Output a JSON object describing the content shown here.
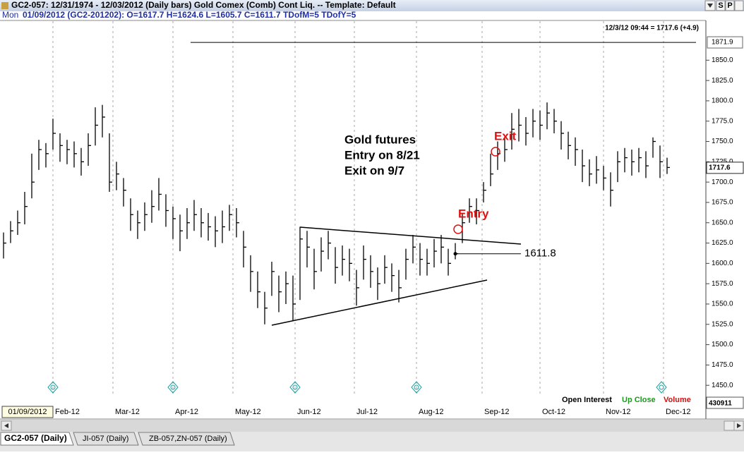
{
  "window": {
    "title": "GC2-057:  12/31/1974 - 12/03/2012  (Daily bars)   Gold Comex (Comb) Cont Liq.  --  Template: Default",
    "buttons": [
      "S",
      "P"
    ]
  },
  "info_line": {
    "day": "Mon",
    "text": "01/09/2012 (GC2-201202):  O=1617.7  H=1624.6  L=1605.7  C=1611.7  TDofM=5  TDofY=5"
  },
  "chart_data": {
    "type": "ohlc",
    "high": [
      1638,
      1652,
      1665,
      1688,
      1735,
      1752,
      1748,
      1778,
      1760,
      1752,
      1750,
      1742,
      1760,
      1792,
      1795,
      1760,
      1725,
      1705,
      1680,
      1665,
      1675,
      1690,
      1705,
      1685,
      1670,
      1660,
      1668,
      1678,
      1668,
      1662,
      1658,
      1665,
      1672,
      1668,
      1640,
      1610,
      1590,
      1565,
      1602,
      1585,
      1590,
      1585,
      1645,
      1640,
      1618,
      1632,
      1640,
      1620,
      1622,
      1618,
      1592,
      1622,
      1610,
      1595,
      1610,
      1600,
      1592,
      1618,
      1635,
      1625,
      1618,
      1630,
      1635,
      1618,
      1625,
      1662,
      1680,
      1680,
      1700,
      1735,
      1750,
      1755,
      1785,
      1790,
      1780,
      1790,
      1788,
      1798,
      1790,
      1775,
      1762,
      1755,
      1740,
      1728,
      1732,
      1720,
      1712,
      1738,
      1742,
      1740,
      1742,
      1738,
      1755,
      1745,
      1730
    ],
    "low": [
      1606,
      1625,
      1635,
      1648,
      1680,
      1715,
      1718,
      1740,
      1725,
      1722,
      1718,
      1708,
      1720,
      1745,
      1755,
      1688,
      1690,
      1670,
      1640,
      1630,
      1640,
      1650,
      1665,
      1645,
      1630,
      1615,
      1630,
      1640,
      1632,
      1628,
      1620,
      1625,
      1640,
      1632,
      1595,
      1565,
      1545,
      1525,
      1560,
      1540,
      1550,
      1530,
      1555,
      1595,
      1568,
      1590,
      1605,
      1575,
      1585,
      1578,
      1548,
      1580,
      1570,
      1555,
      1575,
      1565,
      1552,
      1580,
      1600,
      1585,
      1585,
      1595,
      1600,
      1585,
      1605,
      1625,
      1650,
      1648,
      1675,
      1695,
      1715,
      1725,
      1740,
      1750,
      1745,
      1755,
      1752,
      1765,
      1760,
      1740,
      1728,
      1720,
      1700,
      1695,
      1698,
      1690,
      1670,
      1700,
      1712,
      1708,
      1712,
      1705,
      1730,
      1705,
      1710
    ],
    "close": [
      1625,
      1640,
      1650,
      1670,
      1700,
      1740,
      1735,
      1760,
      1745,
      1740,
      1735,
      1725,
      1745,
      1770,
      1780,
      1700,
      1710,
      1690,
      1660,
      1650,
      1660,
      1670,
      1685,
      1665,
      1655,
      1640,
      1650,
      1660,
      1650,
      1645,
      1640,
      1645,
      1660,
      1650,
      1620,
      1590,
      1565,
      1545,
      1590,
      1565,
      1575,
      1550,
      1630,
      1620,
      1590,
      1615,
      1625,
      1595,
      1605,
      1600,
      1570,
      1605,
      1590,
      1575,
      1595,
      1585,
      1570,
      1605,
      1620,
      1605,
      1600,
      1615,
      1620,
      1600,
      1612,
      1650,
      1670,
      1665,
      1690,
      1710,
      1735,
      1740,
      1765,
      1770,
      1760,
      1775,
      1770,
      1785,
      1775,
      1760,
      1745,
      1740,
      1720,
      1710,
      1715,
      1705,
      1690,
      1725,
      1730,
      1725,
      1730,
      1720,
      1750,
      1725,
      1718
    ],
    "xlim": [
      -0.5,
      99.5
    ],
    "xticks": [
      {
        "value": 7,
        "label": "Feb-12"
      },
      {
        "value": 15.5,
        "label": "Mar-12"
      },
      {
        "value": 24,
        "label": "Apr-12"
      },
      {
        "value": 32.5,
        "label": "May-12"
      },
      {
        "value": 41.3,
        "label": "Jun-12"
      },
      {
        "value": 49.7,
        "label": "Jul-12"
      },
      {
        "value": 58.5,
        "label": "Aug-12"
      },
      {
        "value": 67.8,
        "label": "Sep-12"
      },
      {
        "value": 76,
        "label": "Oct-12"
      },
      {
        "value": 85,
        "label": "Nov-12"
      },
      {
        "value": 93.5,
        "label": "Dec-12"
      }
    ],
    "ylim": [
      1425,
      1898
    ],
    "yticks": [
      {
        "value": 1450,
        "label": "1450.0"
      },
      {
        "value": 1475,
        "label": "1475.0"
      },
      {
        "value": 1500,
        "label": "1500.0"
      },
      {
        "value": 1525,
        "label": "1525.0"
      },
      {
        "value": 1550,
        "label": "1550.0"
      },
      {
        "value": 1575,
        "label": "1575.0"
      },
      {
        "value": 1600,
        "label": "1600.0"
      },
      {
        "value": 1625,
        "label": "1625.0"
      },
      {
        "value": 1650,
        "label": "1650.0"
      },
      {
        "value": 1675,
        "label": "1675.0"
      },
      {
        "value": 1700,
        "label": "1700.0"
      },
      {
        "value": 1725,
        "label": "1725.0"
      },
      {
        "value": 1750,
        "label": "1750.0"
      },
      {
        "value": 1775,
        "label": "1775.0"
      },
      {
        "value": 1800,
        "label": "1800.0"
      },
      {
        "value": 1825,
        "label": "1825.0"
      },
      {
        "value": 1850,
        "label": "1850.0"
      }
    ],
    "last_quote": "12/3/12 09:44 = 1717.6 (+4.9)",
    "high_flag": 1871.9,
    "last_flag": 1717.6,
    "level_label": 1611.8,
    "annotation": [
      "Gold futures",
      "Entry on 8/21",
      "Exit on 9/7"
    ],
    "entry_label": "Entry",
    "exit_label": "Exit",
    "legend": [
      "Open Interest",
      "Up Close",
      "Volume"
    ],
    "open_interest": 430911,
    "cursor_date": "01/09/2012"
  },
  "tabs": [
    "GC2-057 (Daily)",
    "JI-057 (Daily)",
    "ZB-057,ZN-057 (Daily)"
  ]
}
